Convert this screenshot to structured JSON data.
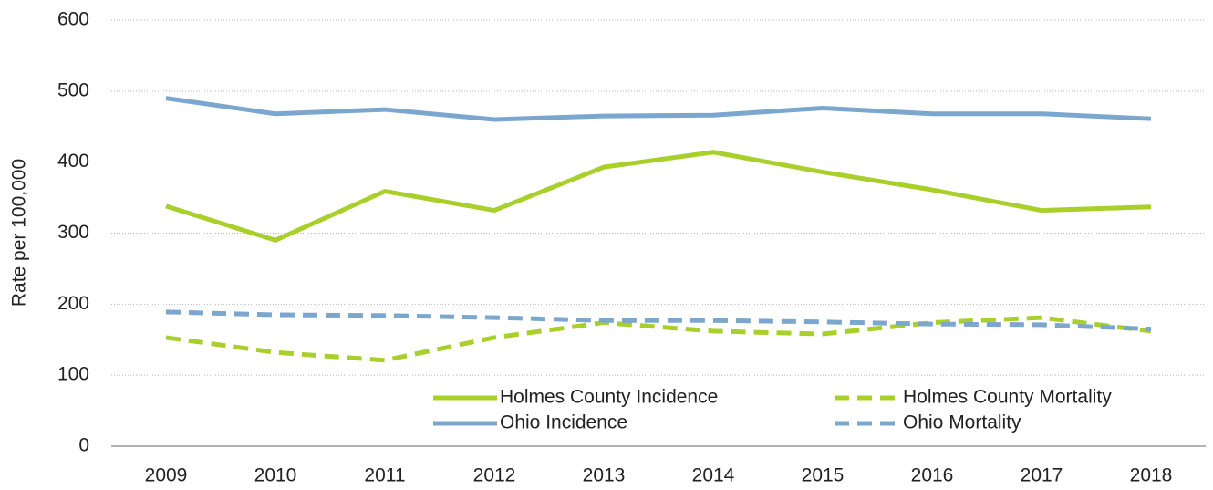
{
  "chart_data": {
    "type": "line",
    "y_label": "Rate per 100,000",
    "categories": [
      "2009",
      "2010",
      "2011",
      "2012",
      "2013",
      "2014",
      "2015",
      "2016",
      "2017",
      "2018"
    ],
    "series": [
      {
        "name": "Holmes County Incidence",
        "color": "#a9cf2b",
        "dashed": false,
        "values": [
          338,
          290,
          359,
          332,
          393,
          414,
          386,
          361,
          332,
          337
        ]
      },
      {
        "name": "Holmes County Mortality",
        "color": "#a9cf2b",
        "dashed": true,
        "values": [
          153,
          132,
          121,
          153,
          174,
          162,
          158,
          174,
          181,
          162
        ]
      },
      {
        "name": "Ohio Incidence",
        "color": "#7ba7cf",
        "dashed": false,
        "values": [
          490,
          468,
          474,
          460,
          465,
          466,
          476,
          468,
          468,
          461
        ]
      },
      {
        "name": "Ohio Mortality",
        "color": "#7ba7cf",
        "dashed": true,
        "values": [
          189,
          185,
          184,
          181,
          177,
          177,
          175,
          172,
          171,
          165
        ]
      }
    ],
    "ylim": [
      0,
      600
    ],
    "yticks": [
      0,
      100,
      200,
      300,
      400,
      500,
      600
    ],
    "grid": true,
    "legend": "lower right"
  }
}
